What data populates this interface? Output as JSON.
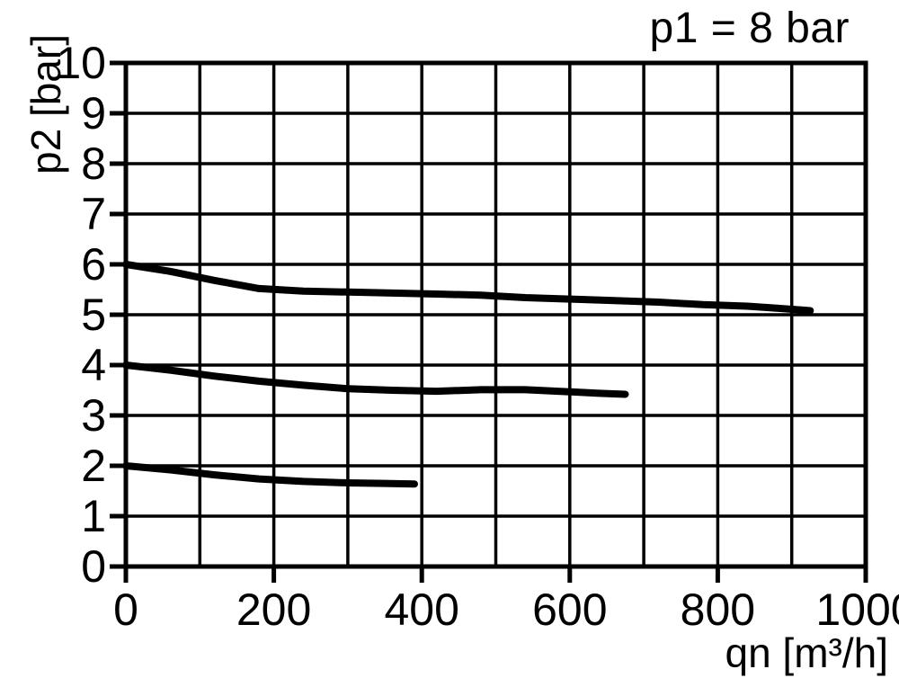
{
  "page": {
    "background_color": "#ffffff",
    "ink_color": "#000000"
  },
  "chart_data": {
    "type": "line",
    "annotation": "p1 = 8 bar",
    "xlabel": "qn [m³/h]",
    "ylabel": "p2 [bar]",
    "xlim": [
      0,
      1000
    ],
    "ylim": [
      0,
      10
    ],
    "x_grid_step": 100,
    "x_tick_labels": [
      "0",
      "200",
      "400",
      "600",
      "800",
      "1000"
    ],
    "x_tick_values": [
      0,
      200,
      400,
      600,
      800,
      1000
    ],
    "y_tick_labels": [
      "0",
      "1",
      "2",
      "3",
      "4",
      "5",
      "6",
      "7",
      "8",
      "9",
      "10"
    ],
    "y_tick_values": [
      0,
      1,
      2,
      3,
      4,
      5,
      6,
      7,
      8,
      9,
      10
    ],
    "grid": true,
    "legend_position": "none",
    "line_color": "#000000",
    "series": [
      {
        "id": "curve-top",
        "start_p2": 6,
        "points": [
          [
            0,
            6.0
          ],
          [
            60,
            5.86
          ],
          [
            120,
            5.68
          ],
          [
            180,
            5.52
          ],
          [
            240,
            5.47
          ],
          [
            300,
            5.45
          ],
          [
            360,
            5.43
          ],
          [
            420,
            5.41
          ],
          [
            480,
            5.39
          ],
          [
            540,
            5.34
          ],
          [
            600,
            5.31
          ],
          [
            660,
            5.28
          ],
          [
            720,
            5.25
          ],
          [
            780,
            5.2
          ],
          [
            840,
            5.17
          ],
          [
            880,
            5.13
          ],
          [
            925,
            5.08
          ]
        ]
      },
      {
        "id": "curve-middle",
        "start_p2": 4,
        "points": [
          [
            0,
            4.0
          ],
          [
            60,
            3.9
          ],
          [
            120,
            3.78
          ],
          [
            180,
            3.68
          ],
          [
            240,
            3.6
          ],
          [
            300,
            3.53
          ],
          [
            360,
            3.5
          ],
          [
            420,
            3.48
          ],
          [
            480,
            3.51
          ],
          [
            540,
            3.51
          ],
          [
            600,
            3.47
          ],
          [
            640,
            3.44
          ],
          [
            675,
            3.42
          ]
        ]
      },
      {
        "id": "curve-bottom",
        "start_p2": 2,
        "points": [
          [
            0,
            2.0
          ],
          [
            60,
            1.92
          ],
          [
            120,
            1.82
          ],
          [
            180,
            1.74
          ],
          [
            240,
            1.69
          ],
          [
            300,
            1.66
          ],
          [
            350,
            1.65
          ],
          [
            390,
            1.64
          ]
        ]
      }
    ]
  }
}
